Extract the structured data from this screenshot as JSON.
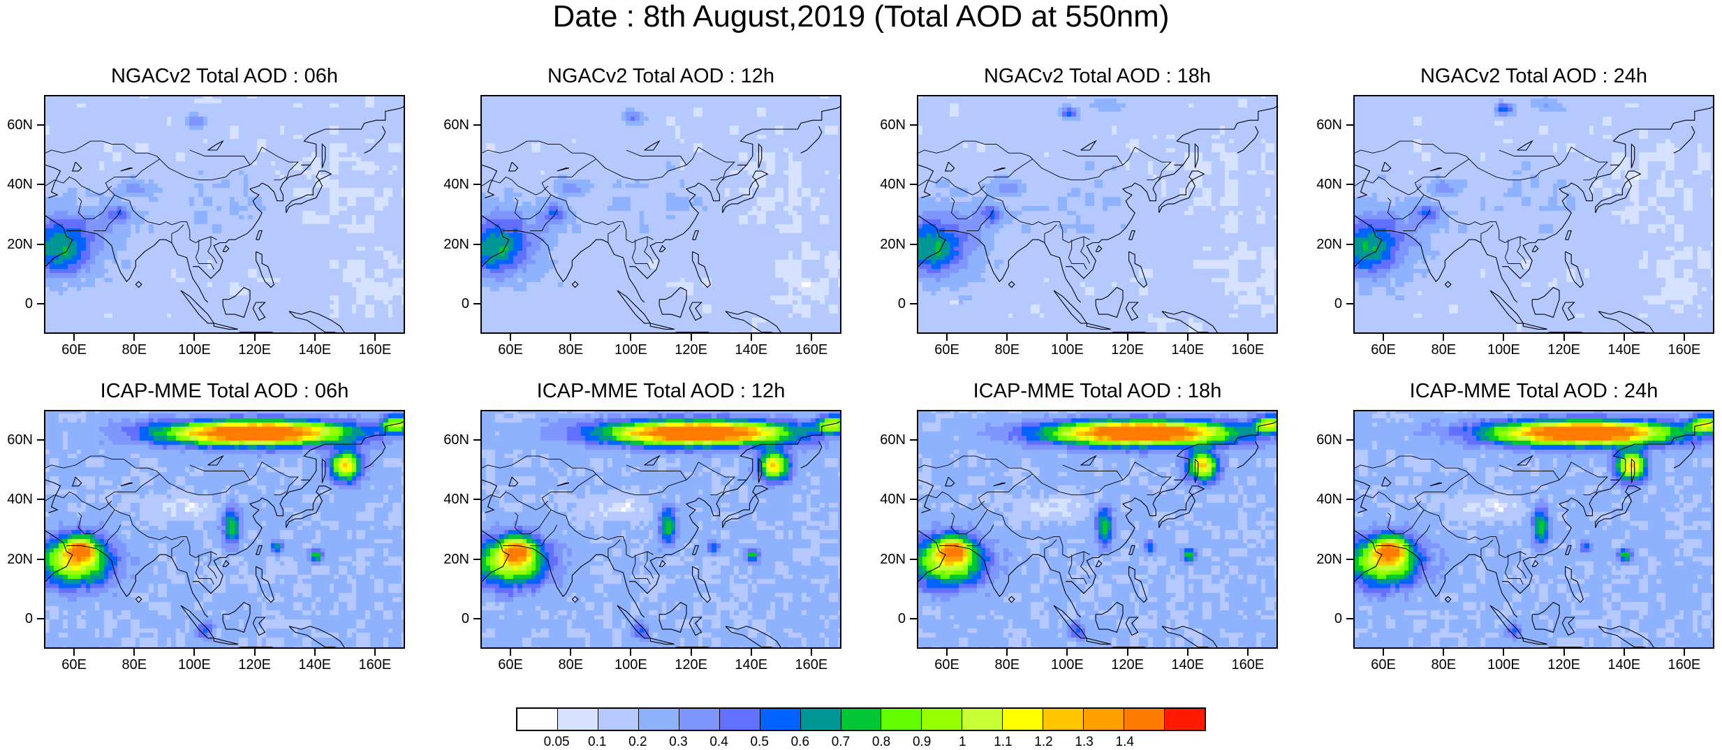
{
  "title": "Date : 8th August,2019 (Total AOD at 550nm)",
  "axes": {
    "x_ticks": [
      60,
      80,
      100,
      120,
      140,
      160
    ],
    "x_tick_labels": [
      "60E",
      "80E",
      "100E",
      "120E",
      "140E",
      "160E"
    ],
    "y_ticks": [
      0,
      20,
      40,
      60
    ],
    "y_tick_labels": [
      "0",
      "20N",
      "40N",
      "60N"
    ],
    "lon_range": [
      50,
      170
    ],
    "lat_range": [
      -10,
      70
    ]
  },
  "panels": [
    {
      "id": "ngac-06h",
      "row": "NGACv2",
      "title": "NGACv2 Total AOD : 06h",
      "hour": 6
    },
    {
      "id": "ngac-12h",
      "row": "NGACv2",
      "title": "NGACv2 Total AOD : 12h",
      "hour": 12
    },
    {
      "id": "ngac-18h",
      "row": "NGACv2",
      "title": "NGACv2 Total AOD : 18h",
      "hour": 18
    },
    {
      "id": "ngac-24h",
      "row": "NGACv2",
      "title": "NGACv2 Total AOD : 24h",
      "hour": 24
    },
    {
      "id": "icap-06h",
      "row": "ICAP-MME",
      "title": "ICAP-MME Total AOD : 06h",
      "hour": 6
    },
    {
      "id": "icap-12h",
      "row": "ICAP-MME",
      "title": "ICAP-MME Total AOD : 12h",
      "hour": 12
    },
    {
      "id": "icap-18h",
      "row": "ICAP-MME",
      "title": "ICAP-MME Total AOD : 18h",
      "hour": 18
    },
    {
      "id": "icap-24h",
      "row": "ICAP-MME",
      "title": "ICAP-MME Total AOD : 24h",
      "hour": 24
    }
  ],
  "colorbar": {
    "labels": [
      "0.05",
      "0.1",
      "0.2",
      "0.3",
      "0.4",
      "0.5",
      "0.6",
      "0.7",
      "0.8",
      "0.9",
      "1",
      "1.1",
      "1.2",
      "1.3",
      "1.4"
    ],
    "levels": [
      0.05,
      0.1,
      0.2,
      0.3,
      0.4,
      0.5,
      0.6,
      0.7,
      0.8,
      0.9,
      1.0,
      1.1,
      1.2,
      1.3,
      1.4
    ],
    "colors": [
      "#ffffff",
      "#d6e2ff",
      "#b5c9ff",
      "#8fb2ff",
      "#7f96ff",
      "#6370ff",
      "#0063ff",
      "#009696",
      "#00c633",
      "#63ff00",
      "#96ff00",
      "#c6ff33",
      "#ffff00",
      "#ffc600",
      "#ffa000",
      "#ff7c00",
      "#ff1900"
    ]
  }
}
